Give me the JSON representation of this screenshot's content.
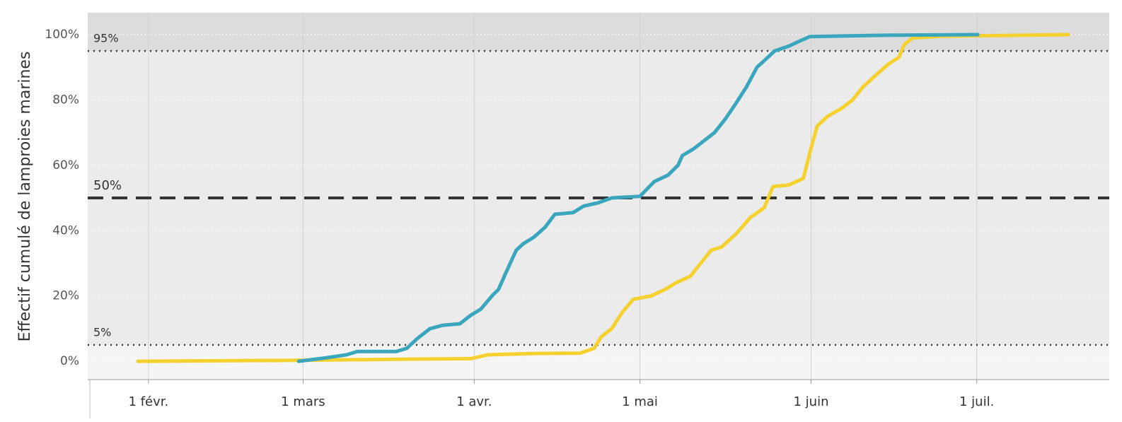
{
  "chart_data": {
    "type": "line",
    "y_label": "Effectif cumulé de lamproies marines",
    "xlim": [
      21,
      206
    ],
    "xticks": [
      {
        "value": 32,
        "label": "1 févr."
      },
      {
        "value": 60,
        "label": "1 mars"
      },
      {
        "value": 91,
        "label": "1 avr."
      },
      {
        "value": 121,
        "label": "1 mai"
      },
      {
        "value": 152,
        "label": "1 juin"
      },
      {
        "value": 182,
        "label": "1 juil."
      }
    ],
    "ylim": [
      -5.6,
      106.7
    ],
    "yticks": [
      {
        "value": 0,
        "label": "0%"
      },
      {
        "value": 20,
        "label": "20%"
      },
      {
        "value": 40,
        "label": "40%"
      },
      {
        "value": 60,
        "label": "60%"
      },
      {
        "value": 80,
        "label": "80%"
      },
      {
        "value": 100,
        "label": "100%"
      }
    ],
    "grid": true,
    "reference_lines": [
      {
        "value": 5,
        "label": "5%",
        "style": "dotted"
      },
      {
        "value": 50,
        "label": "50%",
        "style": "dashed"
      },
      {
        "value": 95,
        "label": "95%",
        "style": "dotted"
      }
    ],
    "series": [
      {
        "color": "#3aa6bd",
        "x": [
          59.2,
          63.9,
          67.9,
          69.8,
          76.9,
          78.8,
          80.7,
          83,
          85.2,
          88.4,
          90.3,
          92.2,
          94.2,
          95.4,
          96.7,
          98.6,
          99.9,
          101.8,
          103.8,
          105.6,
          108.9,
          110.8,
          113.4,
          115.9,
          121,
          123.6,
          126.1,
          127.9,
          128.7,
          130.7,
          134.5,
          136.4,
          138.4,
          140.3,
          142.2,
          143.5,
          145.4,
          148,
          149.9,
          151.8,
          158.9,
          165.3,
          182.2
        ],
        "values": [
          0,
          1,
          2,
          3,
          3,
          4,
          7,
          10,
          11,
          11.5,
          14,
          16,
          20,
          22,
          27,
          34,
          36,
          38,
          41,
          45,
          45.5,
          47.5,
          48.5,
          50,
          50.5,
          55,
          57,
          60,
          63,
          65,
          70,
          74,
          79,
          84,
          90,
          92,
          95,
          96.5,
          98,
          99.4,
          99.6,
          99.8,
          100
        ]
      },
      {
        "color": "#f5d12f",
        "x": [
          30.1,
          58.9,
          82,
          90.3,
          93.5,
          102.5,
          110.2,
          112.7,
          114,
          115.9,
          117.8,
          119.8,
          123,
          125.6,
          127.5,
          130.1,
          132,
          133.9,
          135.8,
          138.4,
          141,
          143.5,
          145.1,
          148,
          150.6,
          151.8,
          153.1,
          155,
          157.6,
          159.5,
          161.4,
          164,
          166,
          167.9,
          168.9,
          170.4,
          175.5,
          198.6
        ],
        "values": [
          0,
          0.3,
          0.7,
          0.8,
          2,
          2.4,
          2.5,
          4,
          7.5,
          10,
          15,
          19,
          20,
          22,
          24,
          26,
          30,
          34,
          35,
          39,
          44,
          47,
          53.5,
          54,
          56,
          64,
          72,
          75,
          77.5,
          80,
          84,
          88,
          91,
          93,
          97,
          99,
          99.5,
          100
        ]
      }
    ]
  }
}
